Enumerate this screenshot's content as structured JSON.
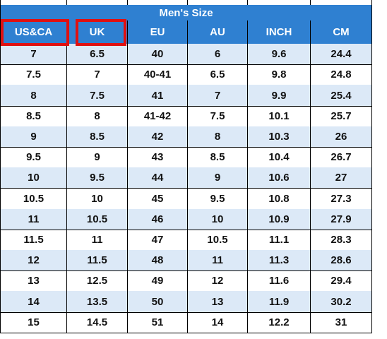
{
  "table": {
    "title": "Men's Size",
    "columns": [
      "US&CA",
      "UK",
      "EU",
      "AU",
      "INCH",
      "CM"
    ],
    "rows": [
      [
        "7",
        "6.5",
        "40",
        "6",
        "9.6",
        "24.4"
      ],
      [
        "7.5",
        "7",
        "40-41",
        "6.5",
        "9.8",
        "24.8"
      ],
      [
        "8",
        "7.5",
        "41",
        "7",
        "9.9",
        "25.4"
      ],
      [
        "8.5",
        "8",
        "41-42",
        "7.5",
        "10.1",
        "25.7"
      ],
      [
        "9",
        "8.5",
        "42",
        "8",
        "10.3",
        "26"
      ],
      [
        "9.5",
        "9",
        "43",
        "8.5",
        "10.4",
        "26.7"
      ],
      [
        "10",
        "9.5",
        "44",
        "9",
        "10.6",
        "27"
      ],
      [
        "10.5",
        "10",
        "45",
        "9.5",
        "10.8",
        "27.3"
      ],
      [
        "11",
        "10.5",
        "46",
        "10",
        "10.9",
        "27.9"
      ],
      [
        "11.5",
        "11",
        "47",
        "10.5",
        "11.1",
        "28.3"
      ],
      [
        "12",
        "11.5",
        "48",
        "11",
        "11.3",
        "28.6"
      ],
      [
        "13",
        "12.5",
        "49",
        "12",
        "11.6",
        "29.4"
      ],
      [
        "14",
        "13.5",
        "50",
        "13",
        "11.9",
        "30.2"
      ],
      [
        "15",
        "14.5",
        "51",
        "14",
        "12.2",
        "31"
      ]
    ]
  }
}
